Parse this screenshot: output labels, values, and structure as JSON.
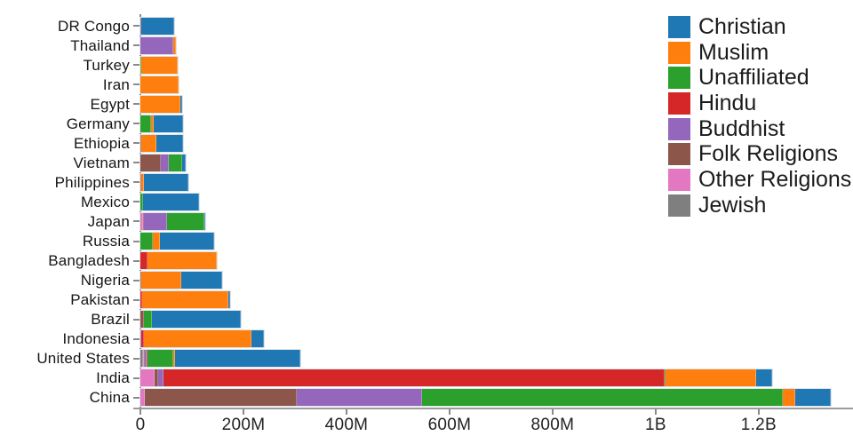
{
  "chart_data": {
    "type": "bar",
    "orientation": "horizontal",
    "stacked": true,
    "title": "",
    "xlabel": "",
    "ylabel": "",
    "value_unit": "millions of people",
    "grid": false,
    "legend_position": "top-right",
    "xlim_millions": [
      0,
      1383
    ],
    "xticks": [
      {
        "millions": 0,
        "label": "0"
      },
      {
        "millions": 200,
        "label": "200M"
      },
      {
        "millions": 400,
        "label": "400M"
      },
      {
        "millions": 600,
        "label": "600M"
      },
      {
        "millions": 800,
        "label": "800M"
      },
      {
        "millions": 1000,
        "label": "1B"
      },
      {
        "millions": 1200,
        "label": "1.2B"
      }
    ],
    "legend": [
      {
        "name": "Christian",
        "color": "#1f77b4"
      },
      {
        "name": "Muslim",
        "color": "#ff7f0e"
      },
      {
        "name": "Unaffiliated",
        "color": "#2ca02c"
      },
      {
        "name": "Hindu",
        "color": "#d62728"
      },
      {
        "name": "Buddhist",
        "color": "#9467bd"
      },
      {
        "name": "Folk Religions",
        "color": "#8c564b"
      },
      {
        "name": "Other Religions",
        "color": "#e377c2"
      },
      {
        "name": "Jewish",
        "color": "#7f7f7f"
      }
    ],
    "stack_order": [
      "Jewish",
      "Other Religions",
      "Folk Religions",
      "Buddhist",
      "Hindu",
      "Unaffiliated",
      "Muslim",
      "Christian"
    ],
    "rows": [
      {
        "country": "DR Congo",
        "segments_millions": {
          "Folk Religions": 1.2,
          "Unaffiliated": 0.3,
          "Muslim": 1.0,
          "Christian": 63.2
        }
      },
      {
        "country": "Thailand",
        "segments_millions": {
          "Buddhist": 64.4,
          "Unaffiliated": 0.2,
          "Muslim": 3.8,
          "Christian": 0.6
        }
      },
      {
        "country": "Turkey",
        "segments_millions": {
          "Unaffiliated": 0.9,
          "Muslim": 71.3,
          "Christian": 0.3
        }
      },
      {
        "country": "Iran",
        "segments_millions": {
          "Other Religions": 0.2,
          "Unaffiliated": 0.1,
          "Muslim": 73.6,
          "Christian": 0.1
        }
      },
      {
        "country": "Egypt",
        "segments_millions": {
          "Muslim": 77.0,
          "Christian": 4.1
        }
      },
      {
        "country": "Germany",
        "segments_millions": {
          "Jewish": 0.25,
          "Buddhist": 0.25,
          "Unaffiliated": 20.3,
          "Muslim": 4.8,
          "Christian": 56.5
        }
      },
      {
        "country": "Ethiopia",
        "segments_millions": {
          "Folk Religions": 2.2,
          "Unaffiliated": 0.1,
          "Muslim": 28.7,
          "Christian": 52.1
        }
      },
      {
        "country": "Vietnam",
        "segments_millions": {
          "Other Religions": 0.35,
          "Folk Religions": 39.8,
          "Buddhist": 14.4,
          "Unaffiliated": 26.0,
          "Muslim": 0.2,
          "Christian": 7.2
        }
      },
      {
        "country": "Philippines",
        "segments_millions": {
          "Other Religions": 0.2,
          "Folk Religions": 1.4,
          "Unaffiliated": 0.1,
          "Muslim": 5.1,
          "Christian": 86.4
        }
      },
      {
        "country": "Mexico",
        "segments_millions": {
          "Unaffiliated": 5.3,
          "Christian": 107.8
        }
      },
      {
        "country": "Japan",
        "segments_millions": {
          "Other Religions": 5.9,
          "Folk Religions": 0.5,
          "Buddhist": 45.8,
          "Unaffiliated": 72.1,
          "Christian": 2.0
        }
      },
      {
        "country": "Russia",
        "segments_millions": {
          "Jewish": 0.3,
          "Folk Religions": 0.3,
          "Buddhist": 0.1,
          "Unaffiliated": 23.2,
          "Muslim": 14.3,
          "Christian": 104.8
        }
      },
      {
        "country": "Bangladesh",
        "segments_millions": {
          "Buddhist": 0.7,
          "Hindu": 13.5,
          "Unaffiliated": 0.1,
          "Muslim": 133.5,
          "Christian": 0.3
        }
      },
      {
        "country": "Nigeria",
        "segments_millions": {
          "Folk Religions": 2.2,
          "Unaffiliated": 0.3,
          "Muslim": 77.3,
          "Christian": 78.1
        }
      },
      {
        "country": "Pakistan",
        "segments_millions": {
          "Hindu": 3.3,
          "Muslim": 167.3,
          "Christian": 2.8
        }
      },
      {
        "country": "Brazil",
        "segments_millions": {
          "Other Religions": 0.6,
          "Folk Religions": 5.5,
          "Buddhist": 0.2,
          "Unaffiliated": 15.4,
          "Christian": 173.3
        }
      },
      {
        "country": "Indonesia",
        "segments_millions": {
          "Folk Religions": 0.7,
          "Buddhist": 1.7,
          "Hindu": 4.1,
          "Unaffiliated": 0.2,
          "Muslim": 209.1,
          "Christian": 23.7
        }
      },
      {
        "country": "United States",
        "segments_millions": {
          "Jewish": 5.6,
          "Other Religions": 1.9,
          "Folk Religions": 0.6,
          "Buddhist": 3.7,
          "Hindu": 1.9,
          "Unaffiliated": 50.9,
          "Muslim": 2.8,
          "Christian": 243.1
        }
      },
      {
        "country": "India",
        "segments_millions": {
          "Other Religions": 28.2,
          "Folk Religions": 6.1,
          "Buddhist": 9.8,
          "Hindu": 973.6,
          "Unaffiliated": 0.9,
          "Muslim": 176.2,
          "Christian": 30.6
        }
      },
      {
        "country": "China",
        "segments_millions": {
          "Other Religions": 9.4,
          "Folk Religions": 293.8,
          "Buddhist": 244.1,
          "Hindu": 0.1,
          "Unaffiliated": 700.2,
          "Muslim": 24.1,
          "Christian": 68.4
        }
      }
    ]
  }
}
